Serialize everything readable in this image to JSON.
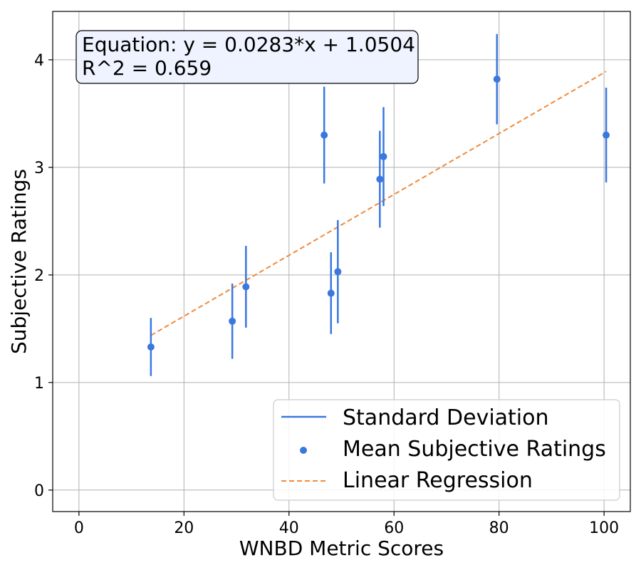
{
  "chart_data": {
    "type": "scatter",
    "title": "",
    "xlabel": "WNBD Metric Scores",
    "ylabel": "Subjective Ratings",
    "xlim": [
      -5,
      105
    ],
    "ylim": [
      -0.2,
      4.45
    ],
    "xticks": [
      0,
      20,
      40,
      60,
      80,
      100
    ],
    "yticks": [
      0,
      1,
      2,
      3,
      4
    ],
    "grid": true,
    "legend_position": "lower-right",
    "annotation": {
      "line1": "Equation: y = 0.0283*x + 1.0504",
      "line2": "R^2 = 0.659"
    },
    "series": [
      {
        "name": "Mean Subjective Ratings",
        "kind": "scatter",
        "color": "#3a78e0",
        "points": [
          {
            "x": 13.7,
            "y": 1.33,
            "sd": 0.27
          },
          {
            "x": 29.2,
            "y": 1.57,
            "sd": 0.35
          },
          {
            "x": 31.8,
            "y": 1.89,
            "sd": 0.38
          },
          {
            "x": 46.7,
            "y": 3.3,
            "sd": 0.45
          },
          {
            "x": 48.0,
            "y": 1.83,
            "sd": 0.38
          },
          {
            "x": 49.3,
            "y": 2.03,
            "sd": 0.48
          },
          {
            "x": 57.3,
            "y": 2.89,
            "sd": 0.45
          },
          {
            "x": 58.0,
            "y": 3.1,
            "sd": 0.46
          },
          {
            "x": 79.6,
            "y": 3.82,
            "sd": 0.42
          },
          {
            "x": 100.4,
            "y": 3.3,
            "sd": 0.44
          }
        ]
      },
      {
        "name": "Standard Deviation",
        "kind": "errorbar",
        "color": "#3a78e0"
      },
      {
        "name": "Linear Regression",
        "kind": "line",
        "color": "#f08a3a",
        "slope": 0.0283,
        "intercept": 1.0504,
        "x_range": [
          13.7,
          100.4
        ]
      }
    ]
  }
}
